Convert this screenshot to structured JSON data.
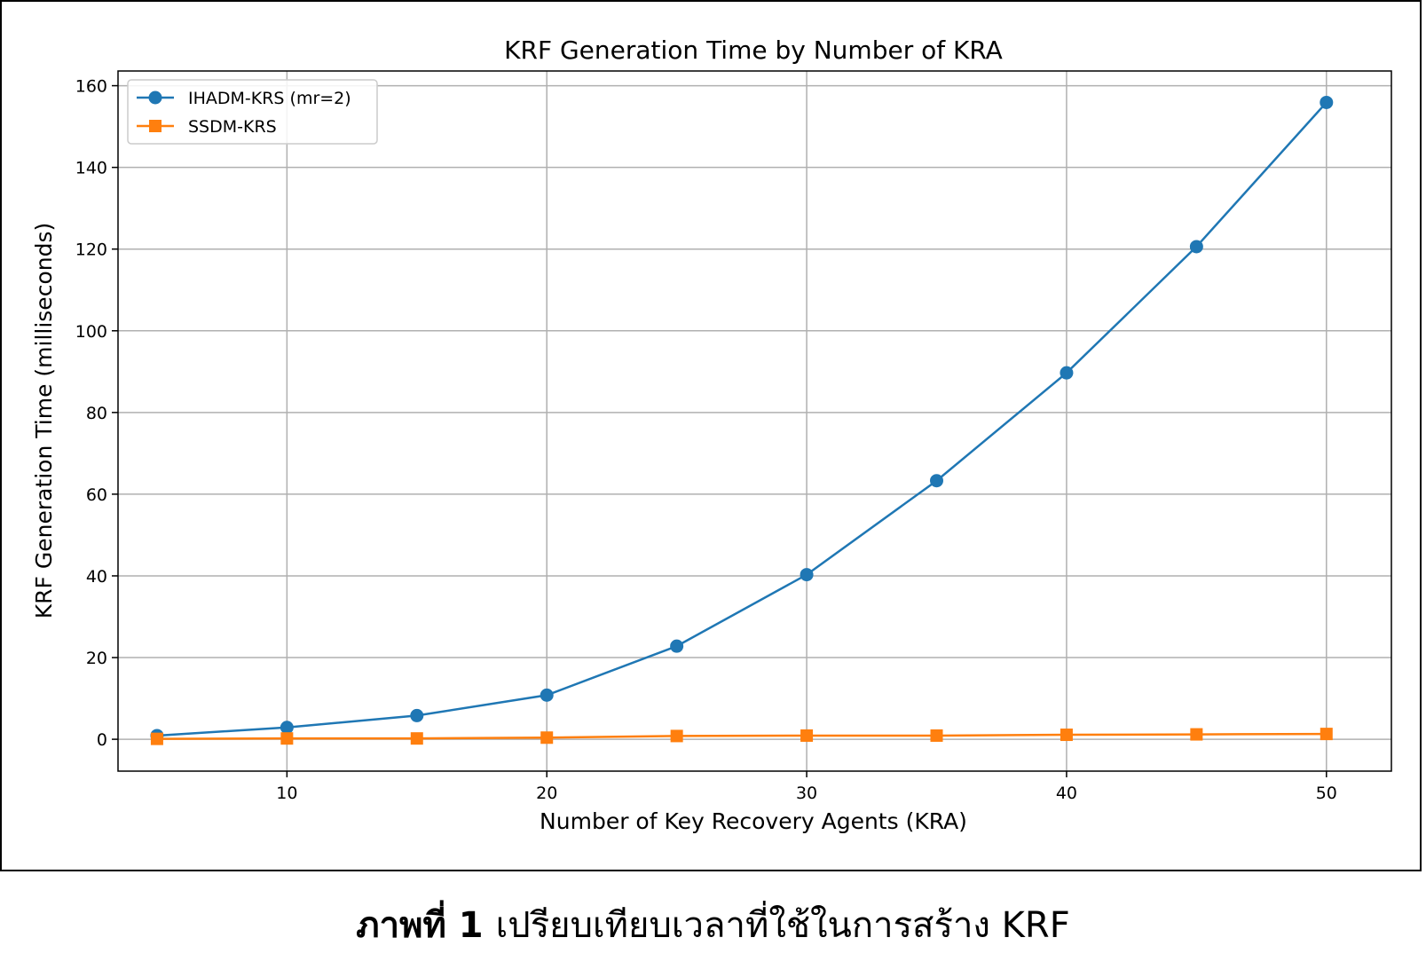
{
  "chart_data": {
    "type": "line",
    "title": "KRF Generation Time by Number of KRA",
    "xlabel": "Number of Key Recovery Agents (KRA)",
    "ylabel": "KRF Generation Time (milliseconds)",
    "x": [
      5,
      10,
      15,
      20,
      25,
      30,
      35,
      40,
      45,
      50
    ],
    "xlim": [
      3.5,
      52.5
    ],
    "ylim": [
      -7.8,
      163.6
    ],
    "xticks": [
      10,
      20,
      30,
      40,
      50
    ],
    "yticks": [
      0,
      20,
      40,
      60,
      80,
      100,
      120,
      140,
      160
    ],
    "grid": true,
    "legend_position": "top-left",
    "series": [
      {
        "name": "IHADM-KRS (mr=2)",
        "marker": "circle",
        "color": "#1f77b4",
        "values": [
          0.9,
          2.9,
          5.8,
          10.8,
          22.8,
          40.3,
          63.3,
          89.7,
          120.6,
          155.9
        ]
      },
      {
        "name": "SSDM-KRS",
        "marker": "square",
        "color": "#ff7f0e",
        "values": [
          0.1,
          0.2,
          0.2,
          0.4,
          0.8,
          0.9,
          0.9,
          1.1,
          1.2,
          1.3
        ]
      }
    ]
  },
  "caption": {
    "label": "ภาพที่ 1",
    "text": "เปรียบเทียบเวลาที่ใช้ในการสร้าง KRF"
  }
}
